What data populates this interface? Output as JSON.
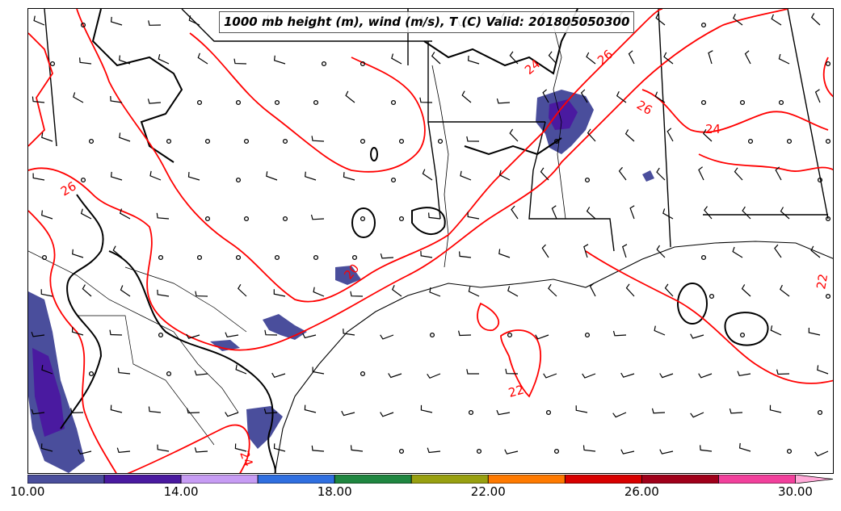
{
  "title": "1000 mb height (m), wind (m/s), T (C) Valid: 201805050300",
  "contour_labels": [
    {
      "text": "26",
      "color": "#ff0000"
    },
    {
      "text": "24",
      "color": "#ff0000"
    },
    {
      "text": "26",
      "color": "#ff0000"
    },
    {
      "text": "26",
      "color": "#ff0000"
    },
    {
      "text": "24",
      "color": "#ff0000"
    },
    {
      "text": "20",
      "color": "#ff0000"
    },
    {
      "text": "22",
      "color": "#ff0000"
    },
    {
      "text": "24",
      "color": "#ff0000"
    },
    {
      "text": "22",
      "color": "#ff0000"
    }
  ],
  "colorbar": {
    "min": 10,
    "max": 31,
    "bins": [
      {
        "from": 10,
        "to": 12,
        "color": "#4a4e9c"
      },
      {
        "from": 12,
        "to": 14,
        "color": "#4a1aa0"
      },
      {
        "from": 14,
        "to": 16,
        "color": "#c79cf4"
      },
      {
        "from": 16,
        "to": 18,
        "color": "#2f6fe0"
      },
      {
        "from": 18,
        "to": 20,
        "color": "#1f8640"
      },
      {
        "from": 20,
        "to": 22,
        "color": "#98a010"
      },
      {
        "from": 22,
        "to": 24,
        "color": "#ff7a00"
      },
      {
        "from": 24,
        "to": 26,
        "color": "#d80000"
      },
      {
        "from": 26,
        "to": 28,
        "color": "#a0001a"
      },
      {
        "from": 28,
        "to": 30,
        "color": "#f2409c"
      },
      {
        "from": 30,
        "to": 31,
        "color": "#ffaad8"
      }
    ],
    "tick_labels": [
      "10.00",
      "14.00",
      "18.00",
      "22.00",
      "26.00",
      "30.00"
    ]
  },
  "colors": {
    "temperature_contour": "#ff0000",
    "height_contour": "#000000",
    "boundaries": "#000000",
    "wind_barbs": "#000000"
  }
}
